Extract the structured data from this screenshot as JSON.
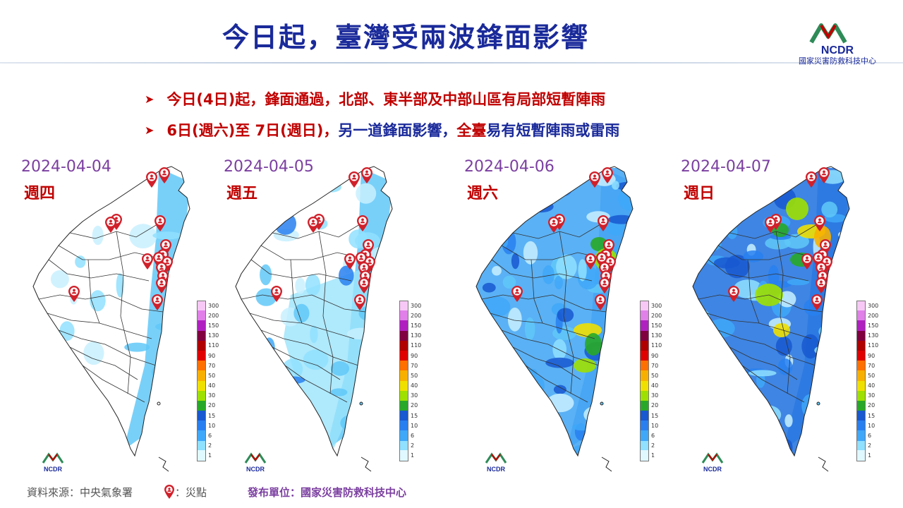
{
  "title": "今日起，臺灣受兩波鋒面影響",
  "logo": {
    "text": "NCDR",
    "subtitle": "國家災害防救科技中心"
  },
  "bullets": [
    {
      "parts": [
        {
          "text": "今日(4日)起，鋒面通過，北部、東半部及中部山區有局部短暫陣雨",
          "color": "red"
        }
      ]
    },
    {
      "parts": [
        {
          "text": "6日(週六)至 7日(週日)，",
          "color": "red"
        },
        {
          "text": "另一道鋒面影響，",
          "color": "blue"
        },
        {
          "text": "全臺",
          "color": "red"
        },
        {
          "text": "易有短暫陣雨或雷雨",
          "color": "blue"
        }
      ]
    }
  ],
  "panels": [
    {
      "date": "2024-04-04",
      "day": "週四",
      "intensity": 1
    },
    {
      "date": "2024-04-05",
      "day": "週五",
      "intensity": 2
    },
    {
      "date": "2024-04-06",
      "day": "週六",
      "intensity": 3
    },
    {
      "date": "2024-04-07",
      "day": "週日",
      "intensity": 4
    }
  ],
  "legend": {
    "labels": [
      "300",
      "200",
      "150",
      "130",
      "110",
      "90",
      "70",
      "50",
      "40",
      "30",
      "20",
      "15",
      "10",
      "6",
      "2",
      "1"
    ],
    "colors": [
      "#f7c8f5",
      "#e080e8",
      "#b020c0",
      "#800040",
      "#b00000",
      "#e00000",
      "#ff7000",
      "#f8b000",
      "#f0e000",
      "#9ee000",
      "#28a828",
      "#1858d0",
      "#2880f0",
      "#40a8f8",
      "#90e0ff",
      "#e0f8ff"
    ]
  },
  "marker_icon": "location-pin-person-icon",
  "footer": {
    "source": "資料來源：中央氣象署",
    "marker_label": "：災點",
    "publisher": "發布單位：國家災害防救科技中心"
  },
  "colors": {
    "title": "#1a2a9a",
    "accent_red": "#c00000",
    "date_purple": "#7b3fa0"
  }
}
